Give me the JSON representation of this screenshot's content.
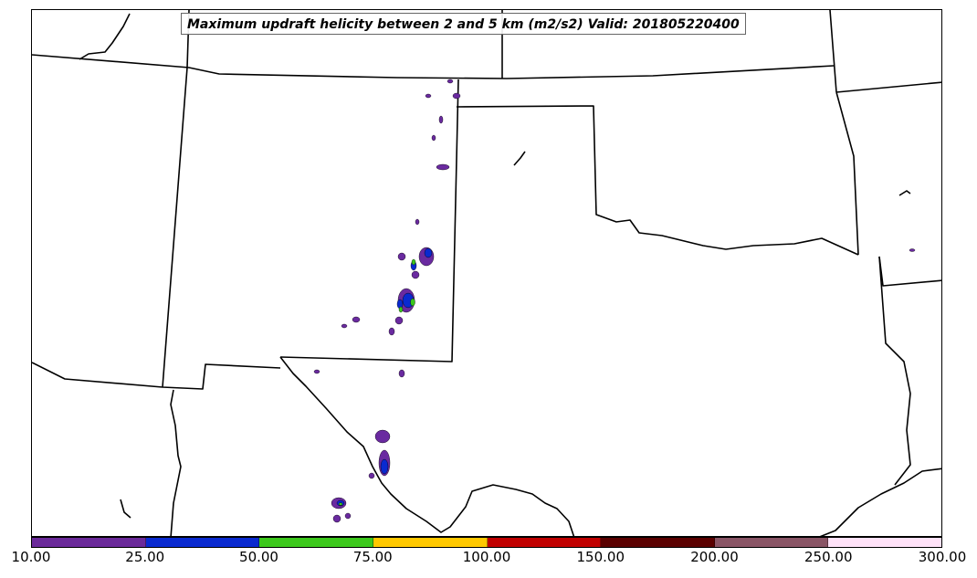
{
  "map": {
    "title": "Maximum updraft helicity between 2 and 5 km (m2/s2) Valid: 201805220400",
    "colors": {
      "boundary": "#000000",
      "background": "#ffffff"
    },
    "helicity_cells": [
      {
        "color": "#6a2aa0"
      },
      {
        "color": "#0a2ad0"
      },
      {
        "color": "#3cc81c"
      }
    ]
  },
  "colorbar": {
    "ticks": [
      "10.00",
      "25.00",
      "50.00",
      "75.00",
      "100.00",
      "150.00",
      "200.00",
      "250.00",
      "300.00"
    ],
    "segments": [
      {
        "color": "#6b2a9a"
      },
      {
        "color": "#0a2ad0"
      },
      {
        "color": "#3cc81c"
      },
      {
        "color": "#ffc800"
      },
      {
        "color": "#c00000"
      },
      {
        "color": "#5a0000"
      },
      {
        "color": "#8a5566"
      },
      {
        "color": "#ffe2f8"
      }
    ]
  }
}
